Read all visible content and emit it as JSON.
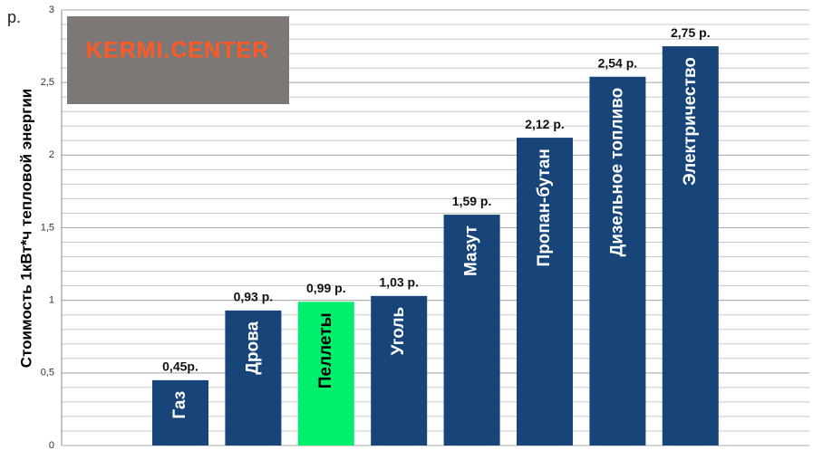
{
  "chart_data": {
    "type": "bar",
    "unit": "р.",
    "y_axis_label": "Стоимость  1кВт*ч тепловой энергии",
    "watermark": "KERMI.CENTER",
    "categories": [
      "Газ",
      "Дрова",
      "Пеллеты",
      "Уголь",
      "Мазут",
      "Пропан-бутан",
      "Дизельное топливо",
      "Электричество"
    ],
    "values": [
      0.45,
      0.93,
      0.99,
      1.03,
      1.59,
      2.12,
      2.54,
      2.75
    ],
    "value_labels": [
      "0,45р.",
      "0,93 р.",
      "0,99 р.",
      "1,03 р.",
      "1,59 р.",
      "2,12 р.",
      "2,54 р.",
      "2,75 р."
    ],
    "colors": [
      "#17457a",
      "#17457a",
      "#00f06e",
      "#17457a",
      "#17457a",
      "#17457a",
      "#17457a",
      "#17457a"
    ],
    "label_colors": [
      "#ffffff",
      "#ffffff",
      "#000000",
      "#ffffff",
      "#ffffff",
      "#ffffff",
      "#ffffff",
      "#ffffff"
    ],
    "ylim": [
      0,
      3
    ],
    "yticks": [
      0,
      {
        "value": 0.5,
        "label": "0,5"
      },
      1,
      {
        "value": 1.5,
        "label": "1,5"
      },
      2,
      {
        "value": 2.5,
        "label": "2,5"
      },
      3
    ],
    "grid": true,
    "minor_grid_step": 0.1
  }
}
